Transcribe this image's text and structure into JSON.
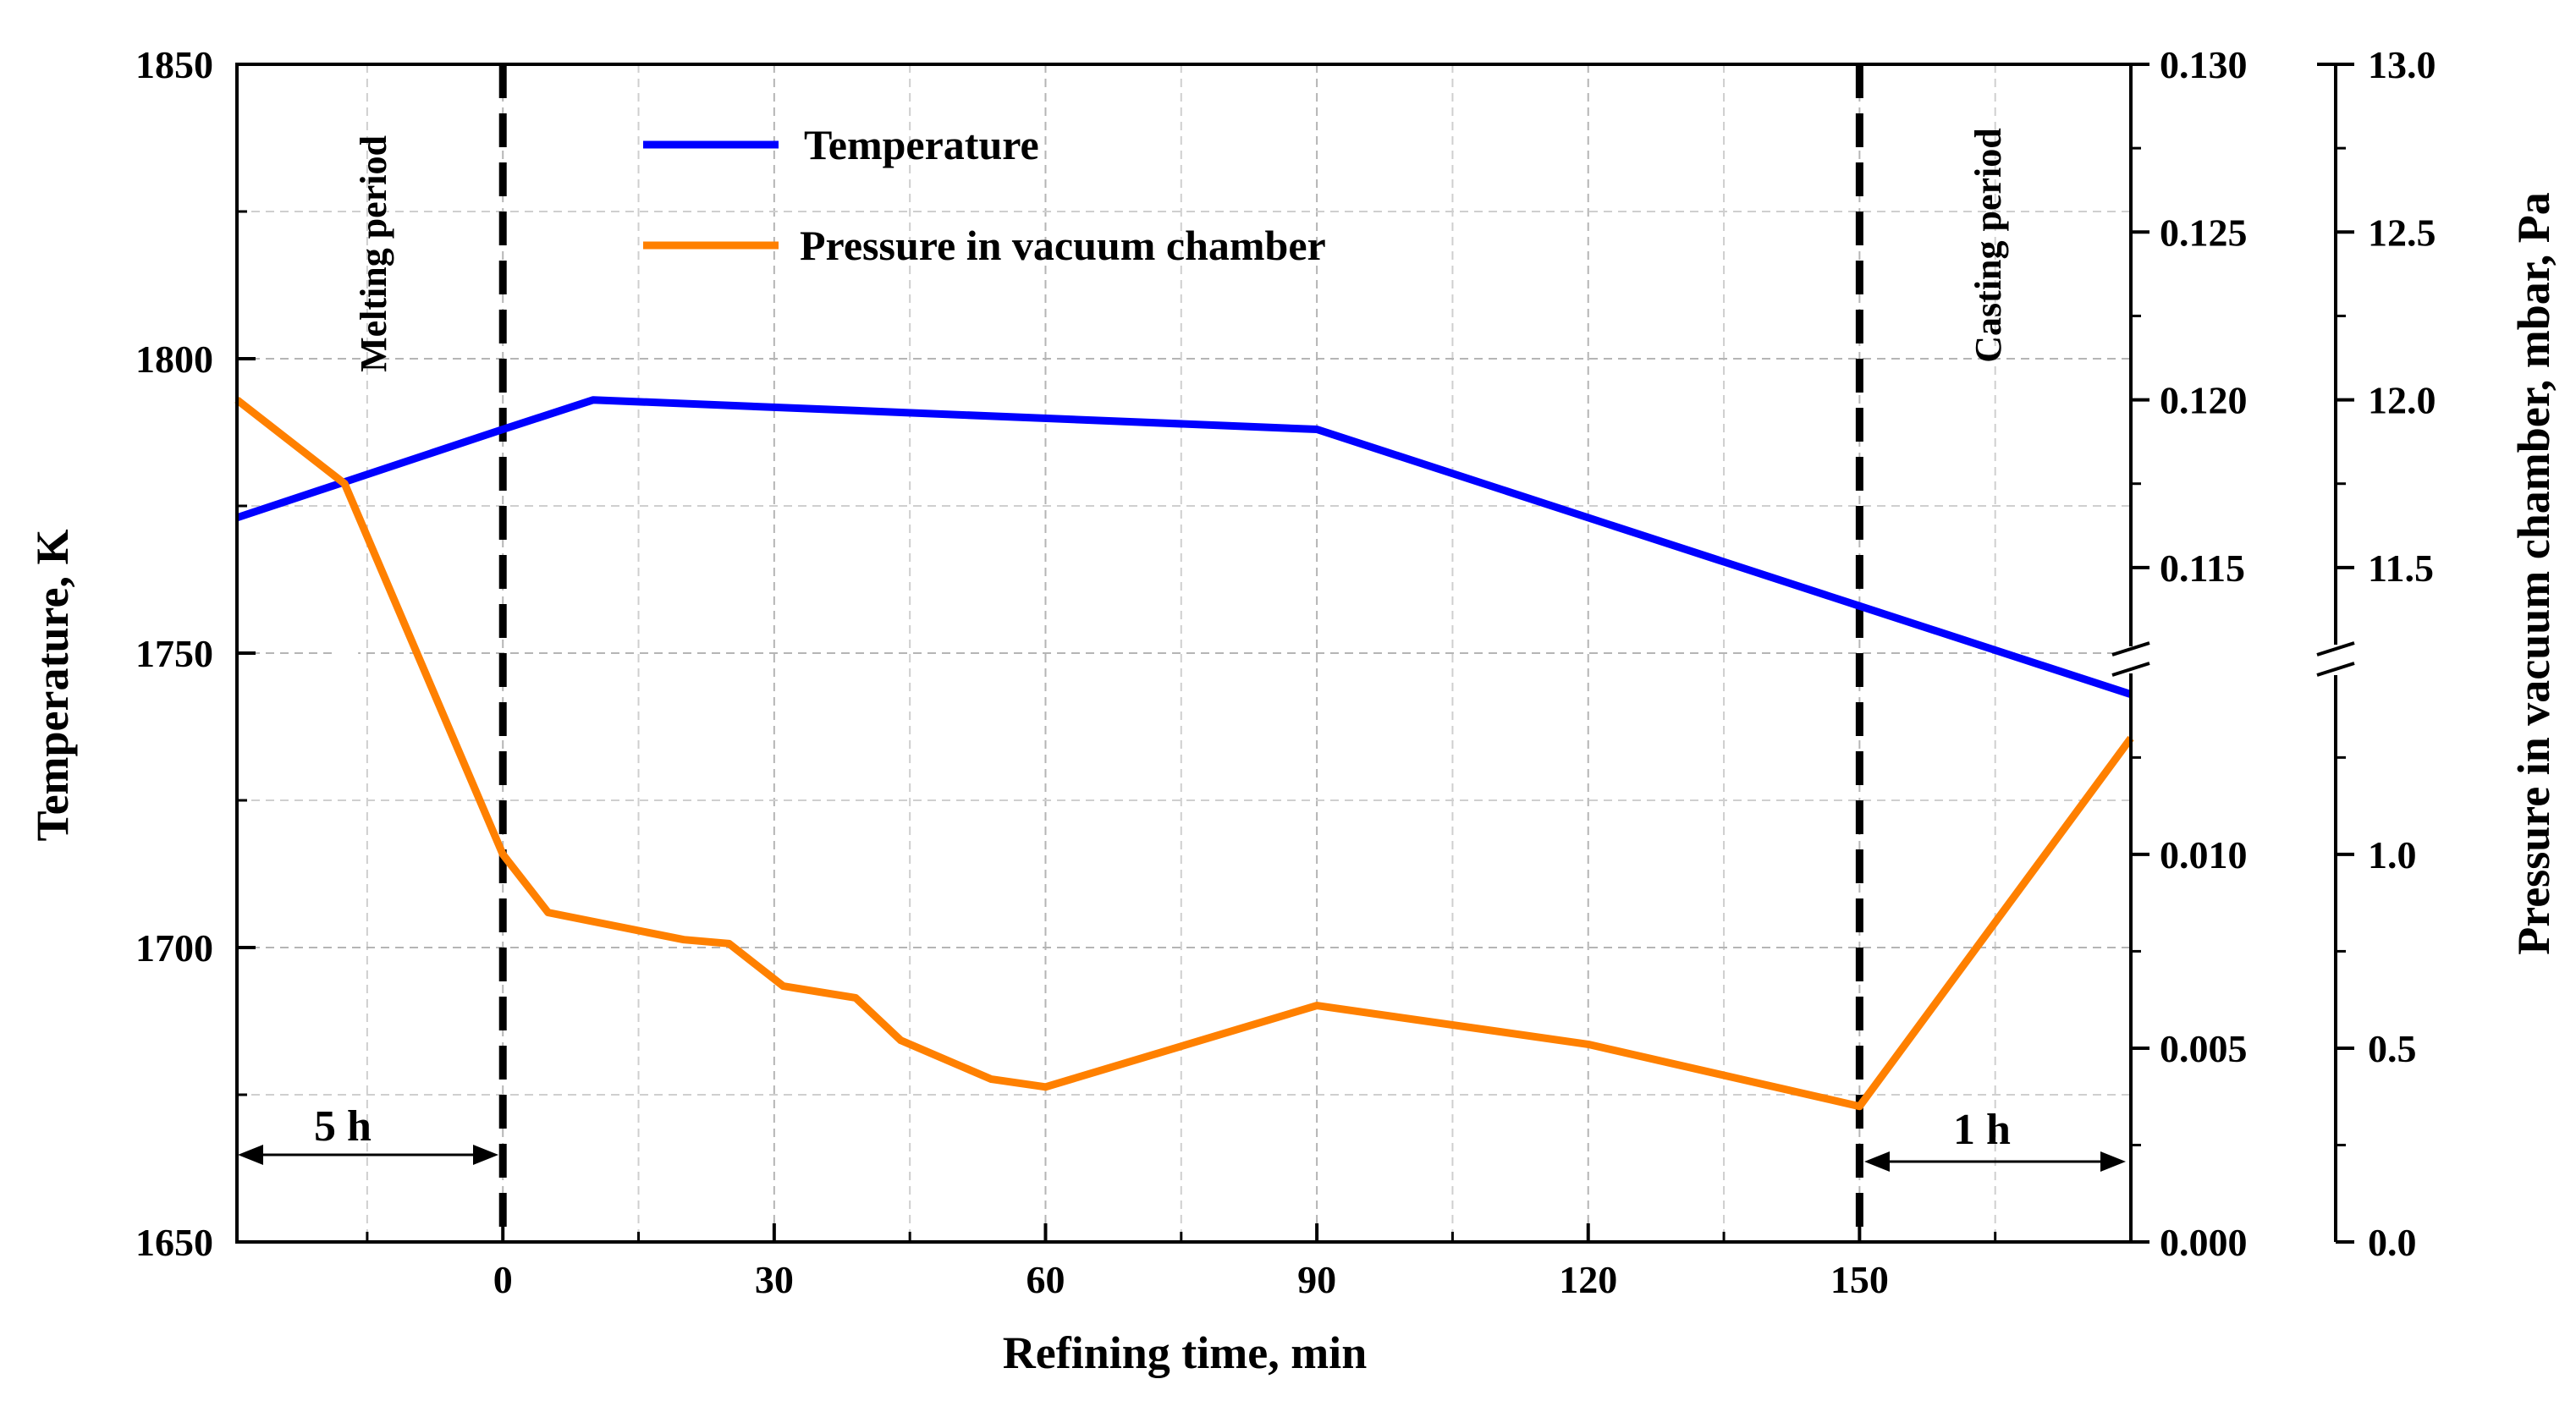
{
  "chart_data": {
    "type": "line",
    "xlabel": "Refining time, min",
    "ylabel_left": "Temperature, K",
    "ylabel_right": "Pressure in vacuum chamber, mbar, Pa",
    "x_axis": {
      "range": [
        -29.4,
        180
      ],
      "ticks": [
        0,
        30,
        60,
        90,
        120,
        150
      ],
      "tick_labels": [
        "0",
        "30",
        "60",
        "90",
        "120",
        "150"
      ]
    },
    "y_left": {
      "range": [
        1650,
        1850
      ],
      "ticks": [
        1650,
        1700,
        1750,
        1800,
        1850
      ],
      "tick_labels": [
        "1650",
        "1700",
        "1750",
        "1800",
        "1850"
      ]
    },
    "y_right_mbar": {
      "lower_range": [
        0.0,
        0.0148
      ],
      "upper_range": [
        0.1125,
        0.13
      ],
      "lower_ticks": [
        0.0,
        0.005,
        0.01
      ],
      "lower_tick_labels": [
        "0.000",
        "0.005",
        "0.010"
      ],
      "upper_ticks": [
        0.115,
        0.12,
        0.125,
        0.13
      ],
      "upper_tick_labels": [
        "0.115",
        "0.120",
        "0.125",
        "0.130"
      ]
    },
    "y_right_pa": {
      "lower_range": [
        0.0,
        1.48
      ],
      "upper_range": [
        11.25,
        13.0
      ],
      "lower_ticks": [
        0.0,
        0.5,
        1.0
      ],
      "lower_tick_labels": [
        "0.0",
        "0.5",
        "1.0"
      ],
      "upper_ticks": [
        11.5,
        12.0,
        12.5,
        13.0
      ],
      "upper_tick_labels": [
        "11.5",
        "12.0",
        "12.5",
        "13.0"
      ]
    },
    "series": [
      {
        "name": "Temperature",
        "color": "#0000ff",
        "axis": "left",
        "points": [
          [
            -29.4,
            1773
          ],
          [
            0,
            1788
          ],
          [
            10,
            1793
          ],
          [
            90,
            1788
          ],
          [
            150,
            1758
          ],
          [
            180,
            1743
          ]
        ]
      },
      {
        "name": "Pressure in vacuum chamber",
        "color": "#ff8000",
        "axis": "right_pa",
        "points": [
          [
            -29.4,
            12.0
          ],
          [
            -17.5,
            11.75
          ],
          [
            0,
            1.0
          ],
          [
            5,
            0.85
          ],
          [
            20,
            0.78
          ],
          [
            25,
            0.77
          ],
          [
            31,
            0.66
          ],
          [
            39,
            0.63
          ],
          [
            44,
            0.52
          ],
          [
            54,
            0.42
          ],
          [
            60,
            0.4
          ],
          [
            90,
            0.61
          ],
          [
            120,
            0.51
          ],
          [
            150,
            0.35
          ],
          [
            180,
            1.3
          ]
        ]
      }
    ],
    "vlines": [
      0,
      150
    ],
    "annotations": {
      "melting_period": "Melting period",
      "casting_period": "Casting period",
      "left_span": "5 h",
      "right_span": "1 h"
    },
    "legend_position": "top-center"
  }
}
